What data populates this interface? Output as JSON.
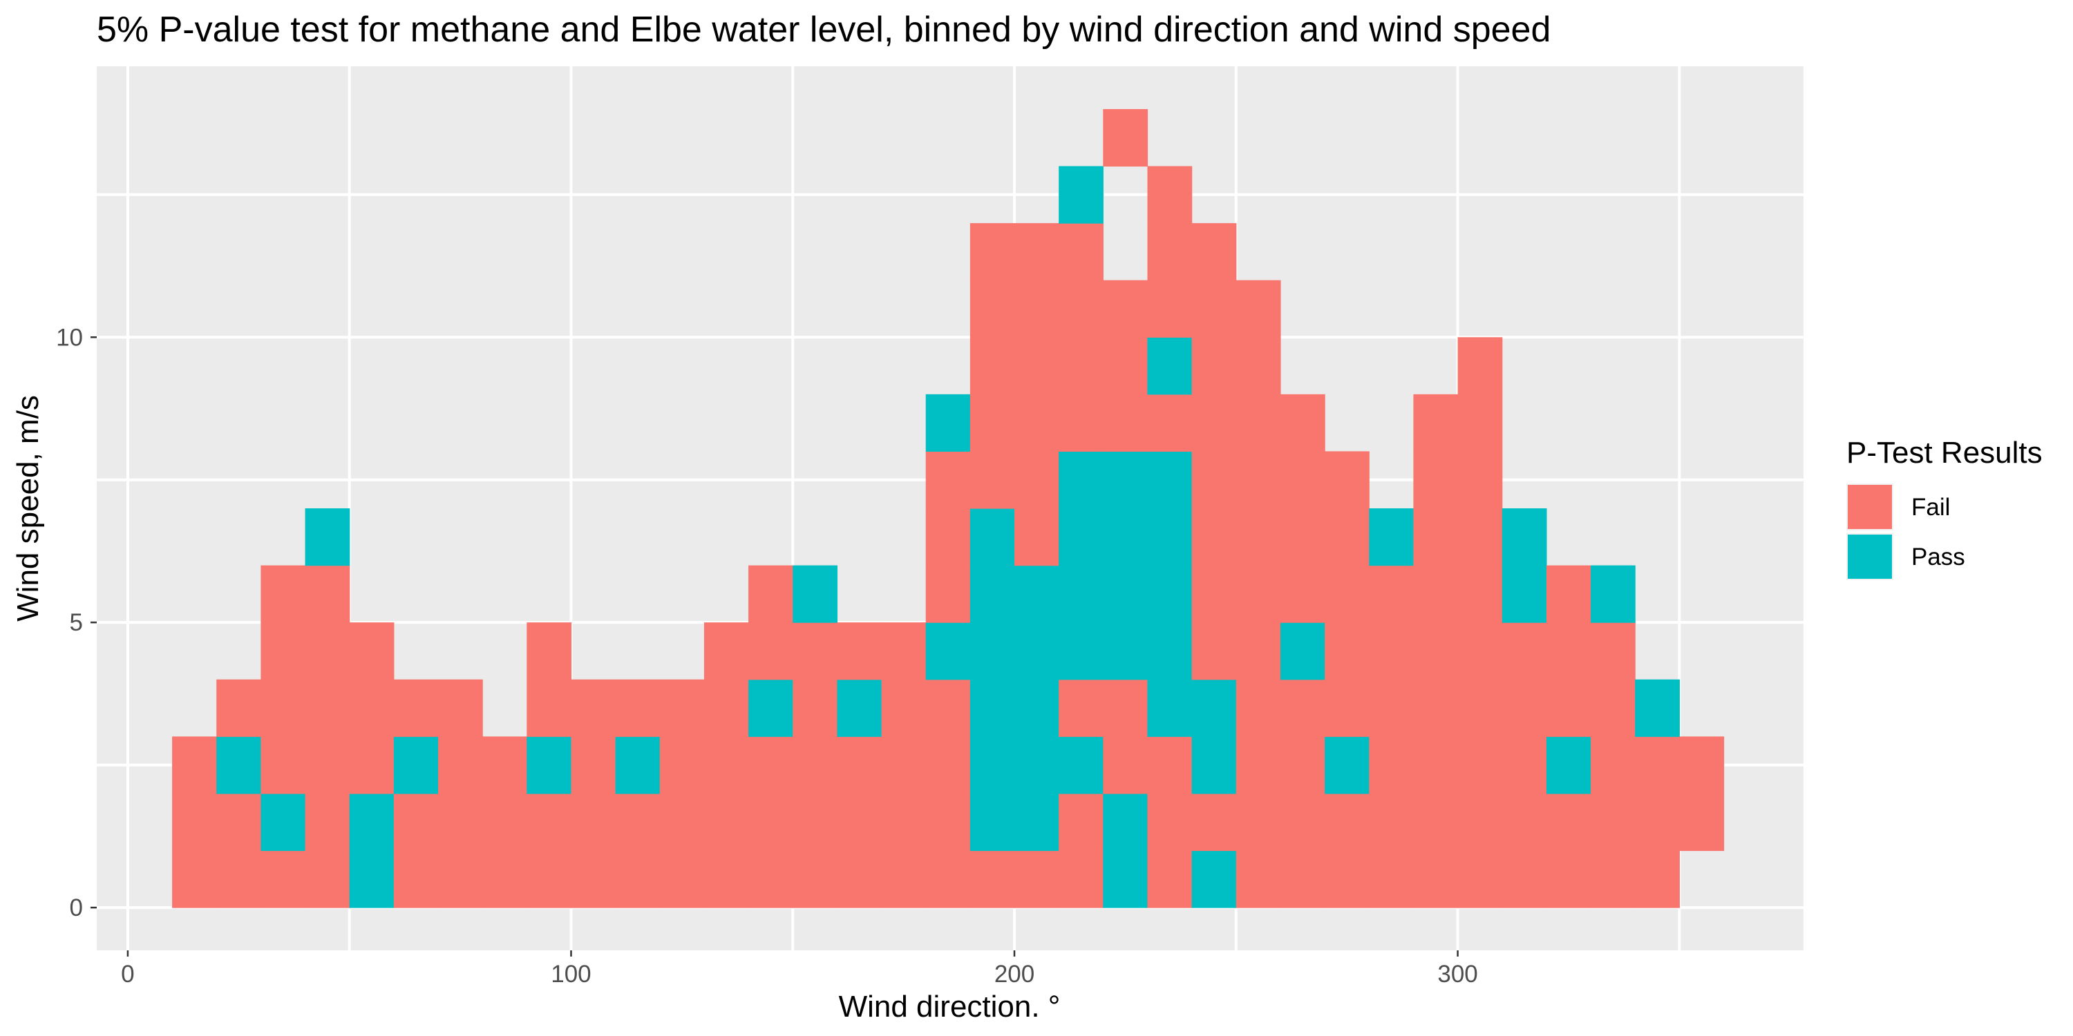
{
  "chart_data": {
    "type": "heatmap",
    "title": "5% P-value test for methane and Elbe water level, binned by wind direction and wind speed",
    "xlabel": "Wind direction. °",
    "ylabel": "Wind speed, m/s",
    "xlim": [
      -7,
      378
    ],
    "ylim": [
      -0.75,
      14.75
    ],
    "x_ticks": [
      0,
      100,
      200,
      300
    ],
    "y_ticks": [
      0,
      5,
      10
    ],
    "x_tick_labels": [
      "0",
      "100",
      "200",
      "300"
    ],
    "y_tick_labels": [
      "0",
      "5",
      "10"
    ],
    "grid": true,
    "bin_width_x": 10,
    "bin_height_y": 1,
    "legend": {
      "title": "P-Test Results",
      "position": "right",
      "entries": [
        {
          "name": "Fail",
          "color": "#F8766D"
        },
        {
          "name": "Pass",
          "color": "#00BFC4"
        }
      ]
    },
    "colors": {
      "Fail": "#F8766D",
      "Pass": "#00BFC4",
      "panel": "#EBEBEB",
      "grid": "#FFFFFF"
    },
    "columns": [
      {
        "x": 10,
        "ymax": 3,
        "pass": []
      },
      {
        "x": 20,
        "ymax": 4,
        "pass": [
          2
        ]
      },
      {
        "x": 30,
        "ymax": 6,
        "pass": [
          1
        ]
      },
      {
        "x": 40,
        "ymax": 7,
        "pass": [
          6
        ]
      },
      {
        "x": 50,
        "ymax": 5,
        "pass": [
          0,
          1
        ]
      },
      {
        "x": 60,
        "ymax": 4,
        "pass": [
          2
        ]
      },
      {
        "x": 70,
        "ymax": 4,
        "pass": []
      },
      {
        "x": 80,
        "ymax": 3,
        "pass": []
      },
      {
        "x": 90,
        "ymax": 5,
        "pass": [
          2
        ]
      },
      {
        "x": 100,
        "ymax": 4,
        "pass": []
      },
      {
        "x": 110,
        "ymax": 4,
        "pass": [
          2
        ]
      },
      {
        "x": 120,
        "ymax": 4,
        "pass": []
      },
      {
        "x": 130,
        "ymax": 5,
        "pass": []
      },
      {
        "x": 140,
        "ymax": 6,
        "pass": [
          3
        ]
      },
      {
        "x": 150,
        "ymax": 6,
        "pass": [
          5
        ]
      },
      {
        "x": 160,
        "ymax": 5,
        "pass": [
          3
        ]
      },
      {
        "x": 170,
        "ymax": 5,
        "pass": []
      },
      {
        "x": 180,
        "ymax": 9,
        "pass": [
          4,
          8
        ]
      },
      {
        "x": 190,
        "ymax": 12,
        "pass": [
          1,
          2,
          3,
          4,
          5,
          6
        ]
      },
      {
        "x": 200,
        "ymax": 12,
        "pass": [
          1,
          2,
          3,
          4,
          5
        ]
      },
      {
        "x": 210,
        "ymax": 13,
        "pass": [
          2,
          4,
          5,
          6,
          7,
          12
        ]
      },
      {
        "x": 220,
        "ymax": 14,
        "pass": [
          0,
          1,
          4,
          5,
          6,
          7
        ],
        "empty": [
          11,
          12
        ]
      },
      {
        "x": 230,
        "ymax": 13,
        "pass": [
          3,
          4,
          5,
          6,
          7,
          9
        ]
      },
      {
        "x": 240,
        "ymax": 12,
        "pass": [
          0,
          2,
          3
        ]
      },
      {
        "x": 250,
        "ymax": 11,
        "pass": []
      },
      {
        "x": 260,
        "ymax": 9,
        "pass": [
          4
        ]
      },
      {
        "x": 270,
        "ymax": 8,
        "pass": [
          2
        ]
      },
      {
        "x": 280,
        "ymax": 7,
        "pass": [
          6
        ]
      },
      {
        "x": 290,
        "ymax": 9,
        "pass": []
      },
      {
        "x": 300,
        "ymax": 10,
        "pass": []
      },
      {
        "x": 310,
        "ymax": 7,
        "pass": [
          5,
          6
        ]
      },
      {
        "x": 320,
        "ymax": 6,
        "pass": [
          2
        ]
      },
      {
        "x": 330,
        "ymax": 6,
        "pass": [
          5
        ]
      },
      {
        "x": 340,
        "ymax": 4,
        "pass": [
          3
        ]
      },
      {
        "x": 350,
        "ymax": 3,
        "ymin": 1,
        "pass": []
      }
    ]
  }
}
